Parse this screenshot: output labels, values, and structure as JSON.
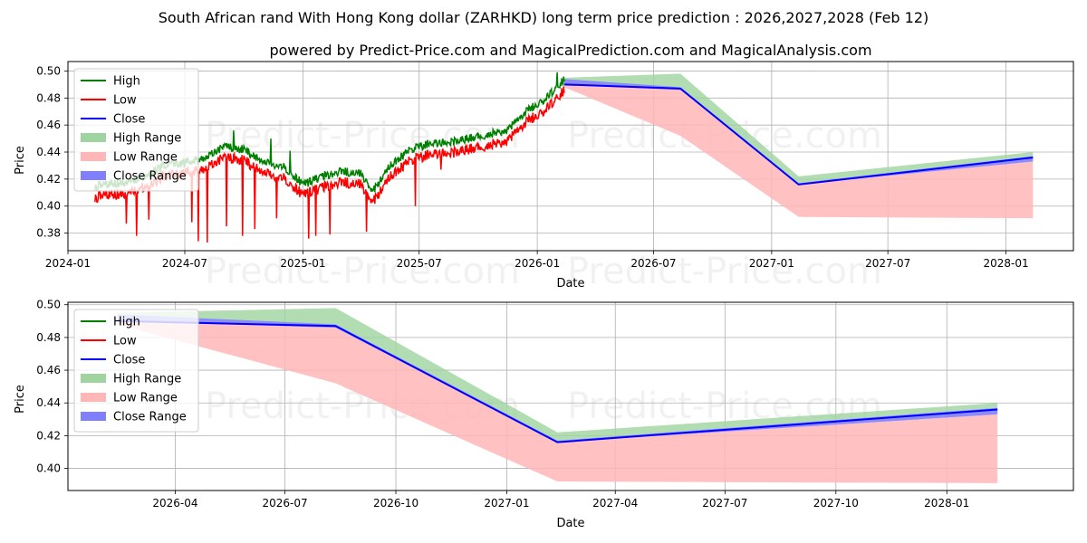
{
  "title": "South African rand With Hong Kong dollar (ZARHKD) long term price prediction : 2026,2027,2028 (Feb 12)",
  "subtitle": "powered by Predict-Price.com and MagicalPrediction.com and MagicalAnalysis.com",
  "watermark": "Predict-Price.com",
  "colors": {
    "high": "#008000",
    "low": "#ff0000",
    "close": "#0000ff",
    "high_range": "#9fd39f",
    "low_range": "#ffb6b6",
    "close_range": "#7f7fff"
  },
  "chart_data": [
    {
      "type": "line",
      "panel": "top",
      "xlabel": "Date",
      "ylabel": "Price",
      "xlim": [
        "2024-01-01",
        "2028-04-15"
      ],
      "ylim": [
        0.367,
        0.507
      ],
      "xticks": [
        "2024-01",
        "2024-07",
        "2025-01",
        "2025-07",
        "2026-01",
        "2026-07",
        "2027-01",
        "2027-07",
        "2028-01"
      ],
      "yticks": [
        "0.38",
        "0.40",
        "0.42",
        "0.44",
        "0.46",
        "0.48",
        "0.50"
      ],
      "grid": true,
      "legend": {
        "position": "top-left",
        "entries": [
          "High",
          "Low",
          "Close",
          "High Range",
          "Low Range",
          "Close Range"
        ]
      },
      "history": {
        "start": "2024-02-12",
        "end": "2026-02-12",
        "anchors": [
          [
            "2024-02-12",
            0.41
          ],
          [
            "2024-03-01",
            0.412
          ],
          [
            "2024-04-01",
            0.414
          ],
          [
            "2024-05-01",
            0.418
          ],
          [
            "2024-06-01",
            0.427
          ],
          [
            "2024-07-01",
            0.428
          ],
          [
            "2024-08-01",
            0.432
          ],
          [
            "2024-09-01",
            0.44
          ],
          [
            "2024-10-01",
            0.438
          ],
          [
            "2024-11-01",
            0.428
          ],
          [
            "2024-12-01",
            0.426
          ],
          [
            "2025-01-01",
            0.412
          ],
          [
            "2025-02-01",
            0.418
          ],
          [
            "2025-03-01",
            0.422
          ],
          [
            "2025-04-01",
            0.42
          ],
          [
            "2025-04-20",
            0.407
          ],
          [
            "2025-05-15",
            0.425
          ],
          [
            "2025-06-15",
            0.437
          ],
          [
            "2025-07-15",
            0.442
          ],
          [
            "2025-08-15",
            0.443
          ],
          [
            "2025-09-15",
            0.446
          ],
          [
            "2025-10-15",
            0.449
          ],
          [
            "2025-11-15",
            0.452
          ],
          [
            "2025-12-15",
            0.466
          ],
          [
            "2026-01-15",
            0.476
          ],
          [
            "2026-02-12",
            0.49
          ]
        ],
        "high_offset": 0.004,
        "low_offset": 0.004,
        "noise_amplitude": 0.004,
        "spikes_low": [
          [
            "2024-04-01",
            0.387
          ],
          [
            "2024-04-17",
            0.378
          ],
          [
            "2024-05-06",
            0.39
          ],
          [
            "2024-07-12",
            0.388
          ],
          [
            "2024-07-22",
            0.374
          ],
          [
            "2024-08-05",
            0.373
          ],
          [
            "2024-09-04",
            0.385
          ],
          [
            "2024-09-29",
            0.378
          ],
          [
            "2024-10-18",
            0.383
          ],
          [
            "2024-11-21",
            0.391
          ],
          [
            "2025-01-10",
            0.376
          ],
          [
            "2025-01-21",
            0.378
          ],
          [
            "2025-02-12",
            0.379
          ],
          [
            "2025-04-10",
            0.381
          ],
          [
            "2025-06-25",
            0.4
          ],
          [
            "2025-08-04",
            0.427
          ]
        ],
        "spikes_high": [
          [
            "2024-09-15",
            0.456
          ],
          [
            "2024-11-12",
            0.45
          ],
          [
            "2024-12-12",
            0.441
          ],
          [
            "2026-02-01",
            0.499
          ]
        ]
      },
      "forecast": {
        "dates": [
          "2026-02-12",
          "2026-08-12",
          "2027-02-12",
          "2028-02-12"
        ],
        "high_upper": [
          0.495,
          0.498,
          0.422,
          0.44
        ],
        "high_lower": [
          0.493,
          0.488,
          0.417,
          0.437
        ],
        "low_upper": [
          0.492,
          0.486,
          0.416,
          0.433
        ],
        "low_lower": [
          0.488,
          0.452,
          0.392,
          0.391
        ],
        "close_upper": [
          0.494,
          0.488,
          0.417,
          0.437
        ],
        "close_lower": [
          0.49,
          0.486,
          0.416,
          0.433
        ],
        "close": [
          0.49,
          0.487,
          0.416,
          0.436
        ]
      }
    },
    {
      "type": "line",
      "panel": "bottom",
      "xlabel": "Date",
      "ylabel": "Price",
      "xlim": [
        "2026-01-02",
        "2028-04-15"
      ],
      "ylim": [
        0.3865,
        0.5015
      ],
      "xticks": [
        "2026-04",
        "2026-07",
        "2026-10",
        "2027-01",
        "2027-04",
        "2027-07",
        "2027-10",
        "2028-01"
      ],
      "yticks": [
        "0.40",
        "0.42",
        "0.44",
        "0.46",
        "0.48",
        "0.50"
      ],
      "grid": true,
      "legend": {
        "position": "top-left",
        "entries": [
          "High",
          "Low",
          "Close",
          "High Range",
          "Low Range",
          "Close Range"
        ]
      },
      "forecast": {
        "dates": [
          "2026-02-12",
          "2026-08-12",
          "2027-02-12",
          "2028-02-12"
        ],
        "high_upper": [
          0.495,
          0.498,
          0.422,
          0.44
        ],
        "high_lower": [
          0.493,
          0.488,
          0.417,
          0.437
        ],
        "low_upper": [
          0.492,
          0.486,
          0.416,
          0.433
        ],
        "low_lower": [
          0.488,
          0.452,
          0.392,
          0.391
        ],
        "close_upper": [
          0.494,
          0.488,
          0.417,
          0.437
        ],
        "close_lower": [
          0.49,
          0.486,
          0.416,
          0.433
        ],
        "close": [
          0.49,
          0.487,
          0.416,
          0.436
        ]
      }
    }
  ]
}
